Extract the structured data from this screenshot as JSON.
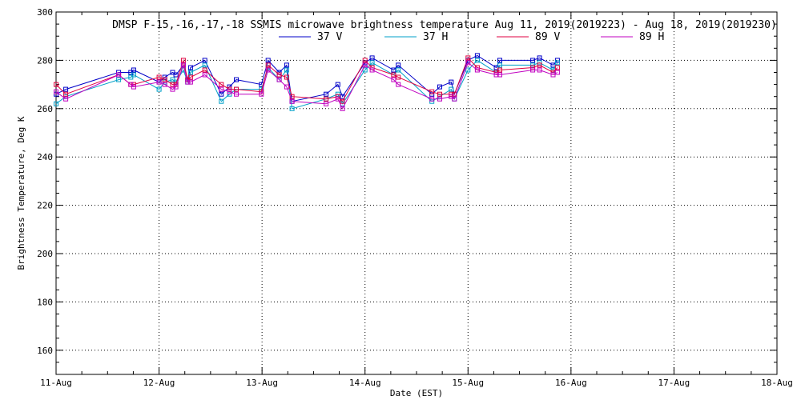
{
  "chart_data": {
    "type": "line",
    "title": "DMSP F-15,-16,-17,-18 SSMIS microwave brightness temperature Aug 11, 2019(2019223) - Aug 18, 2019(2019230)",
    "xlabel": "Date (EST)",
    "ylabel": "Brightness Temperature, Deg K",
    "xlim": [
      "2019-08-11",
      "2019-08-18"
    ],
    "ylim": [
      150,
      300
    ],
    "yticks": [
      160,
      180,
      200,
      220,
      240,
      260,
      280,
      300
    ],
    "xticks": [
      "11-Aug",
      "12-Aug",
      "13-Aug",
      "14-Aug",
      "15-Aug",
      "16-Aug",
      "17-Aug",
      "18-Aug"
    ],
    "grid": true,
    "legend_position": "top-center",
    "times": [
      "2019-08-11 00:00",
      "2019-08-11 02:15",
      "2019-08-11 14:35",
      "2019-08-11 17:25",
      "2019-08-11 18:05",
      "2019-08-12 00:00",
      "2019-08-12 01:20",
      "2019-08-12 03:10",
      "2019-08-12 03:55",
      "2019-08-12 05:40",
      "2019-08-12 06:40",
      "2019-08-12 07:20",
      "2019-08-12 10:40",
      "2019-08-12 14:30",
      "2019-08-12 16:25",
      "2019-08-12 18:00",
      "2019-08-12 23:50",
      "2019-08-13 01:25",
      "2019-08-13 04:00",
      "2019-08-13 05:45",
      "2019-08-13 07:00",
      "2019-08-13 14:55",
      "2019-08-13 17:40",
      "2019-08-13 18:45",
      "2019-08-14 00:00",
      "2019-08-14 01:40",
      "2019-08-14 06:40",
      "2019-08-14 07:45",
      "2019-08-14 15:35",
      "2019-08-14 17:25",
      "2019-08-14 20:05",
      "2019-08-14 20:50",
      "2019-08-15 00:00",
      "2019-08-15 02:10",
      "2019-08-15 06:35",
      "2019-08-15 07:25",
      "2019-08-15 15:05",
      "2019-08-15 16:40",
      "2019-08-15 19:50",
      "2019-08-15 20:50"
    ],
    "series": [
      {
        "name": "37 V",
        "color": "#0000c8",
        "values": [
          266,
          268,
          275,
          275,
          276,
          271,
          273,
          275,
          274,
          278,
          272,
          277,
          280,
          266,
          269,
          272,
          270,
          280,
          275,
          278,
          263,
          266,
          270,
          265,
          279,
          281,
          276,
          278,
          266,
          269,
          271,
          266,
          280,
          282,
          277,
          280,
          280,
          281,
          278,
          280
        ]
      },
      {
        "name": "37 H",
        "color": "#00a0c8",
        "values": [
          262,
          265,
          272,
          273,
          274,
          268,
          271,
          272,
          271,
          276,
          271,
          275,
          278,
          263,
          266,
          268,
          268,
          277,
          272,
          276,
          260,
          264,
          266,
          262,
          276,
          279,
          274,
          276,
          263,
          265,
          268,
          264,
          276,
          280,
          275,
          278,
          278,
          279,
          276,
          279
        ]
      },
      {
        "name": "89 V",
        "color": "#e00040",
        "values": [
          270,
          266,
          274,
          270,
          270,
          273,
          272,
          270,
          270,
          280,
          272,
          273,
          276,
          270,
          268,
          268,
          267,
          278,
          274,
          273,
          265,
          264,
          265,
          263,
          280,
          277,
          274,
          273,
          267,
          266,
          266,
          266,
          281,
          277,
          275,
          276,
          277,
          278,
          275,
          277
        ]
      },
      {
        "name": "89 H",
        "color": "#c000c0",
        "values": [
          267,
          264,
          274,
          270,
          269,
          271,
          270,
          268,
          269,
          278,
          271,
          271,
          274,
          268,
          267,
          266,
          266,
          276,
          272,
          269,
          263,
          262,
          264,
          260,
          278,
          276,
          272,
          270,
          264,
          264,
          265,
          264,
          279,
          276,
          274,
          274,
          276,
          276,
          274,
          275
        ]
      }
    ]
  }
}
